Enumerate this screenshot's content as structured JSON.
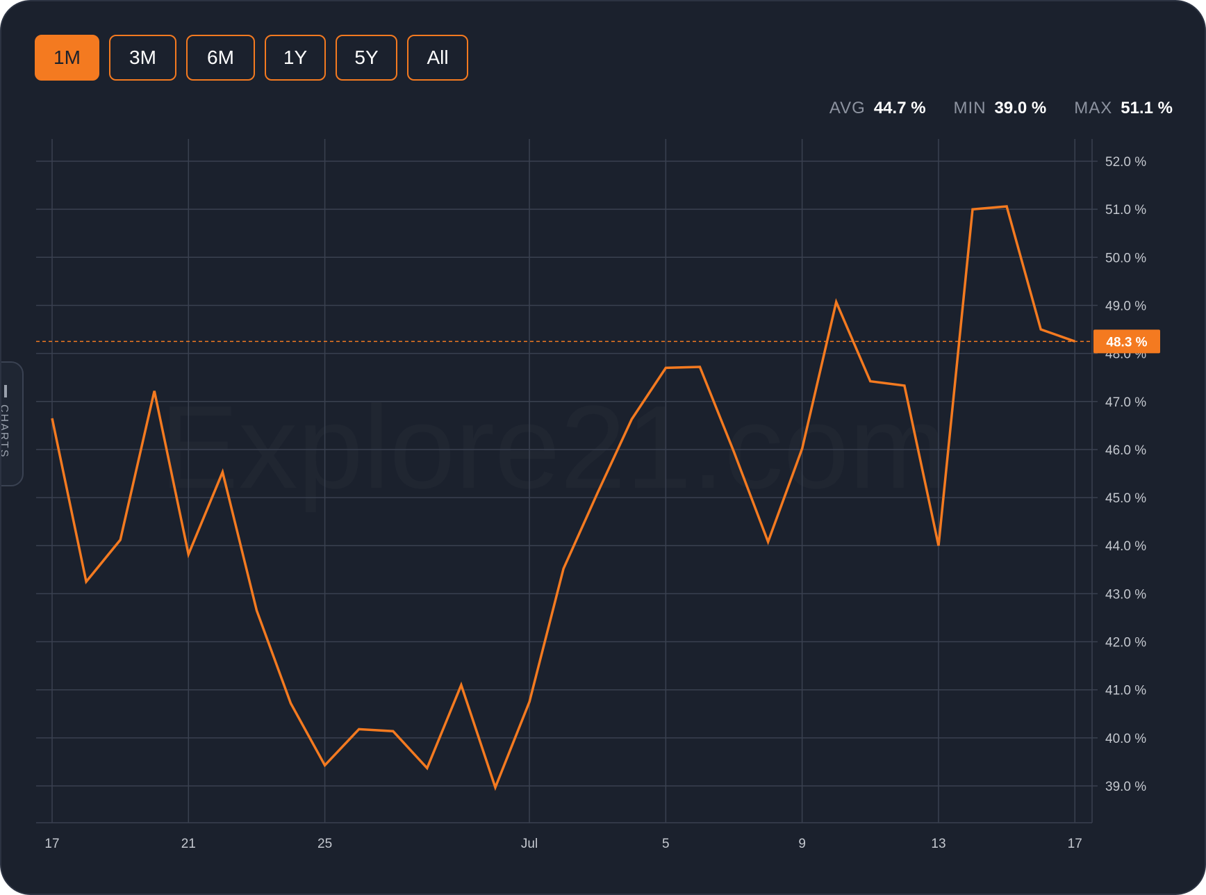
{
  "range_selector": {
    "buttons": [
      {
        "label": "1M",
        "active": true
      },
      {
        "label": "3M",
        "active": false
      },
      {
        "label": "6M",
        "active": false
      },
      {
        "label": "1Y",
        "active": false
      },
      {
        "label": "5Y",
        "active": false
      },
      {
        "label": "All",
        "active": false
      }
    ]
  },
  "stats": {
    "avg_label": "AVG",
    "avg_value": "44.7 %",
    "min_label": "MIN",
    "min_value": "39.0 %",
    "max_label": "MAX",
    "max_value": "51.1 %"
  },
  "side_tab": {
    "label": "CHARTS",
    "icon": "bar-chart-icon"
  },
  "watermark": "Explore21.com",
  "colors": {
    "background": "#1b212d",
    "accent": "#f47a20",
    "grid": "#3a4150",
    "text_muted": "#8d93a0"
  },
  "chart_data": {
    "type": "line",
    "x_tick_labels": [
      "17",
      "21",
      "25",
      "Jul",
      "5",
      "9",
      "13",
      "17"
    ],
    "x_tick_dates": [
      "2024-06-17",
      "2024-06-21",
      "2024-06-25",
      "2024-07-01",
      "2024-07-05",
      "2024-07-09",
      "2024-07-13",
      "2024-07-17"
    ],
    "x": [
      "2024-06-17",
      "2024-06-18",
      "2024-06-19",
      "2024-06-20",
      "2024-06-21",
      "2024-06-22",
      "2024-06-23",
      "2024-06-24",
      "2024-06-25",
      "2024-06-26",
      "2024-06-27",
      "2024-06-28",
      "2024-06-29",
      "2024-06-30",
      "2024-07-01",
      "2024-07-02",
      "2024-07-03",
      "2024-07-04",
      "2024-07-05",
      "2024-07-06",
      "2024-07-07",
      "2024-07-08",
      "2024-07-09",
      "2024-07-10",
      "2024-07-11",
      "2024-07-12",
      "2024-07-13",
      "2024-07-14",
      "2024-07-15",
      "2024-07-16",
      "2024-07-17"
    ],
    "values": [
      46.65,
      43.25,
      44.12,
      47.22,
      43.82,
      45.53,
      42.65,
      40.72,
      39.43,
      40.18,
      40.14,
      39.37,
      41.1,
      38.97,
      40.75,
      43.52,
      45.1,
      46.63,
      47.7,
      47.72,
      45.95,
      44.08,
      46.02,
      49.07,
      47.42,
      47.33,
      44.0,
      51.0,
      51.06,
      48.5,
      48.25
    ],
    "last_value_label": "48.3 %",
    "y_tick_labels": [
      "39.0 %",
      "40.0 %",
      "41.0 %",
      "42.0 %",
      "43.0 %",
      "44.0 %",
      "45.0 %",
      "46.0 %",
      "47.0 %",
      "48.0 %",
      "49.0 %",
      "50.0 %",
      "51.0 %",
      "52.0 %"
    ],
    "ylim": [
      38.65,
      52.5
    ],
    "grid": true,
    "line_color": "#f47a20"
  }
}
